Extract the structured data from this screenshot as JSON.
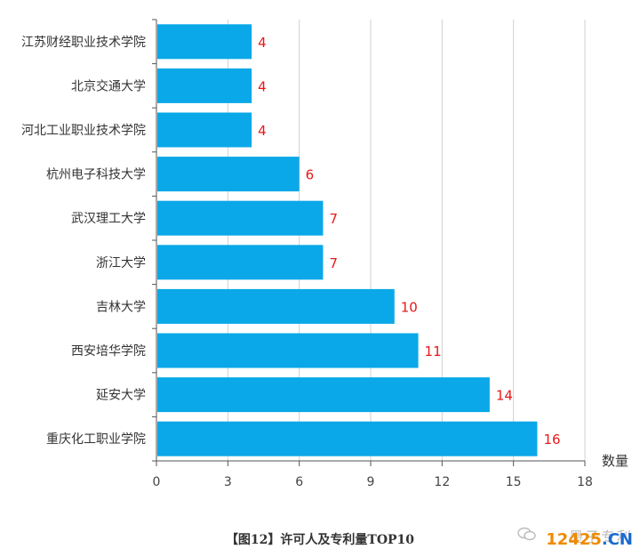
{
  "chart_data": {
    "type": "bar",
    "orientation": "horizontal",
    "categories": [
      "江苏财经职业技术学院",
      "北京交通大学",
      "河北工业职业技术学院",
      "杭州电子科技大学",
      "武汉理工大学",
      "浙江大学",
      "吉林大学",
      "西安培华学院",
      "延安大学",
      "重庆化工职业学院"
    ],
    "values": [
      4,
      4,
      4,
      6,
      7,
      7,
      10,
      11,
      14,
      16
    ],
    "xlabel": "数量",
    "xlim": [
      0,
      18
    ],
    "xticks": [
      "0",
      "3",
      "6",
      "9",
      "12",
      "15",
      "18"
    ],
    "grid": true,
    "bar_color": "#0aa8e8",
    "label_color": "#e8181a"
  },
  "caption": "【图12】许可人及专利量TOP10",
  "watermark": {
    "text_cn": "墨子专利",
    "site_number": "12425",
    "site_domain": ".CN"
  }
}
